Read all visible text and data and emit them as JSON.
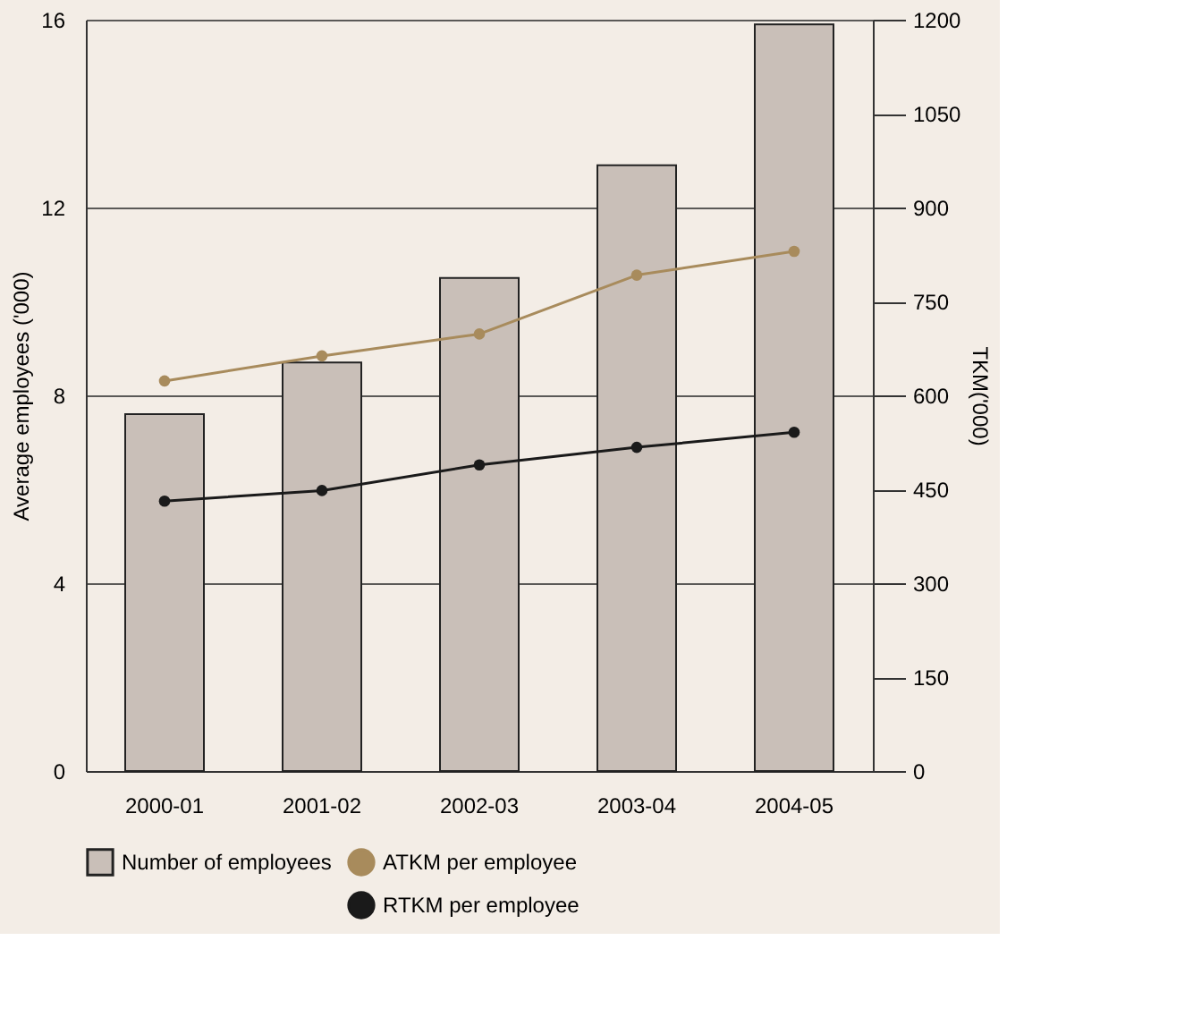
{
  "chart_data": {
    "type": "bar",
    "ylabel": "Average employees ('000)",
    "y2label": "TKM('000)",
    "categories": [
      "2000-01",
      "2001-02",
      "2002-03",
      "2003-04",
      "2004-05"
    ],
    "series": [
      {
        "name": "Number of employees",
        "color": "#c9bfb8",
        "values": [
          7.6,
          8.7,
          10.5,
          12.9,
          15.9
        ]
      },
      {
        "name": "ATKM per employee",
        "type": "line",
        "axis": "y2",
        "color": "#a88b5c",
        "values": [
          623,
          663,
          698,
          792,
          830
        ]
      },
      {
        "name": "RTKM per employee",
        "type": "line",
        "axis": "y2",
        "color": "#1a1a1a",
        "values": [
          431,
          448,
          489,
          517,
          541
        ]
      }
    ],
    "ylim": [
      0,
      16
    ],
    "yticks": [
      0,
      4,
      8,
      12,
      16
    ],
    "y2lim": [
      0,
      1200
    ],
    "y2ticks": [
      0,
      150,
      300,
      450,
      600,
      750,
      900,
      1050,
      1200
    ],
    "grid": "y",
    "legend": "bottom",
    "marker": "circle"
  }
}
